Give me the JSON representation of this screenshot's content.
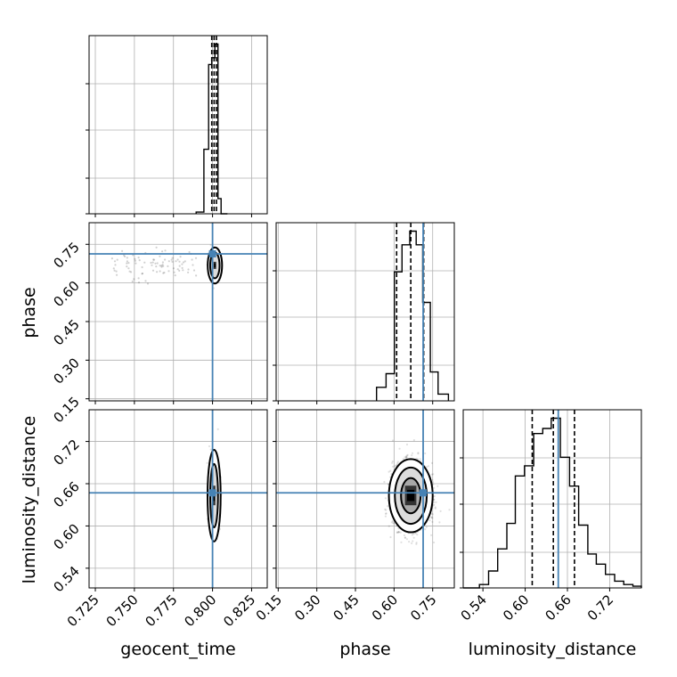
{
  "chart_data": {
    "type": "corner",
    "parameters": [
      "geocent_time",
      "phase",
      "luminosity_distance"
    ],
    "axis_labels": {
      "geocent_time": "geocent_time",
      "phase": "phase",
      "luminosity_distance": "luminosity_distance"
    },
    "ranges": {
      "geocent_time": [
        0.721,
        0.835
      ],
      "phase": [
        0.142,
        0.834
      ],
      "luminosity_distance": [
        0.512,
        0.765
      ]
    },
    "ticks": {
      "geocent_time": [
        "0.725",
        "0.750",
        "0.775",
        "0.800",
        "0.825"
      ],
      "phase": [
        "0.15",
        "0.30",
        "0.45",
        "0.60",
        "0.75"
      ],
      "luminosity_distance": [
        "0.54",
        "0.60",
        "0.66",
        "0.72"
      ]
    },
    "truths": {
      "geocent_time": 0.8,
      "phase": 0.713,
      "luminosity_distance": 0.647
    },
    "colors": {
      "truth": "#4682b4",
      "hist": "#000000",
      "grid": "#b0b0b0"
    },
    "marginals": [
      {
        "param": "geocent_time",
        "bin_edges": [
          0.7895,
          0.7945,
          0.7975,
          0.7995,
          0.8015,
          0.8035,
          0.8055,
          0.8095
        ],
        "counts": [
          1,
          38,
          88,
          92,
          100,
          9,
          0
        ],
        "quantiles": [
          0.7995,
          0.801,
          0.8025
        ]
      },
      {
        "param": "phase",
        "bin_edges": [
          0.532,
          0.569,
          0.601,
          0.631,
          0.661,
          0.686,
          0.711,
          0.741,
          0.771,
          0.811
        ],
        "counts": [
          8,
          16,
          76,
          92,
          100,
          92,
          58,
          17,
          4
        ],
        "quantiles": [
          0.61,
          0.665,
          0.715
        ]
      },
      {
        "param": "luminosity_distance",
        "bin_edges": [
          0.512,
          0.535,
          0.548,
          0.561,
          0.574,
          0.586,
          0.599,
          0.612,
          0.625,
          0.637,
          0.65,
          0.663,
          0.676,
          0.689,
          0.701,
          0.714,
          0.727,
          0.74,
          0.753,
          0.765
        ],
        "counts": [
          0,
          2,
          10,
          23,
          38,
          66,
          72,
          91,
          94,
          100,
          77,
          60,
          37,
          20,
          14,
          8,
          4,
          2,
          1
        ],
        "quantiles": [
          0.61,
          0.64,
          0.67
        ]
      }
    ],
    "joint": [
      {
        "x": "geocent_time",
        "y": "phase",
        "center": [
          0.8015,
          0.668
        ],
        "spread": [
          0.0013,
          0.022
        ],
        "tail_x": [
          0.735,
          0.79
        ],
        "contours": [
          [
            0.003,
            0.05
          ],
          [
            0.0046,
            0.07
          ]
        ]
      },
      {
        "x": "geocent_time",
        "y": "luminosity_distance",
        "center": [
          0.801,
          0.643
        ],
        "spread": [
          0.0013,
          0.022
        ],
        "contours": [
          [
            0.0025,
            0.045
          ],
          [
            0.0042,
            0.065
          ]
        ]
      },
      {
        "x": "phase",
        "y": "luminosity_distance",
        "center": [
          0.665,
          0.643
        ],
        "spread": [
          0.035,
          0.022
        ],
        "contours": [
          [
            0.038,
            0.025
          ],
          [
            0.062,
            0.04
          ],
          [
            0.085,
            0.052
          ]
        ]
      }
    ],
    "grid": true
  }
}
